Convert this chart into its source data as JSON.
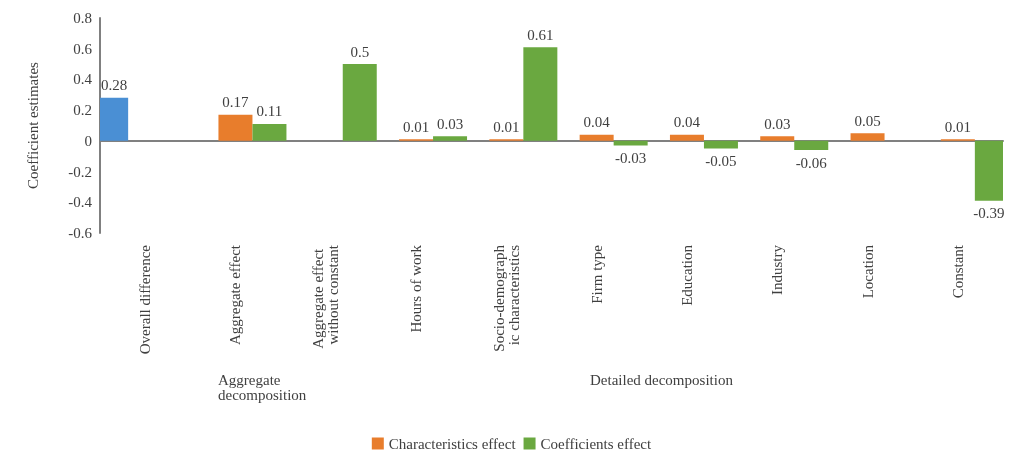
{
  "chart_data": {
    "type": "bar",
    "ylabel": "Coefficient estimates",
    "categories": [
      "Overall difference",
      "Aggregate effect",
      "Aggregate effect without constant",
      "Hours of work",
      "Socio-demographic characteristics",
      "Firm type",
      "Education",
      "Industry",
      "Location",
      "Constant"
    ],
    "series": [
      {
        "color": "#4a8fd4",
        "values": [
          0.28,
          null,
          null,
          null,
          null,
          null,
          null,
          null,
          null,
          null
        ]
      },
      {
        "name": "Characteristics effect",
        "color": "#e87d2c",
        "values": [
          null,
          0.17,
          null,
          0.01,
          0.01,
          0.04,
          0.04,
          0.03,
          0.05,
          0.01
        ]
      },
      {
        "name": "Coefficients effect",
        "color": "#6aa840",
        "values": [
          null,
          0.11,
          0.5,
          0.03,
          0.61,
          -0.03,
          -0.05,
          -0.06,
          null,
          -0.39
        ]
      }
    ],
    "data_labels": true,
    "ylim": [
      -0.6,
      0.8
    ],
    "yticks": [
      -0.6,
      -0.4,
      -0.2,
      0,
      0.2,
      0.4,
      0.6,
      0.8
    ],
    "legend": "bottom",
    "annotations": [
      "Aggregate decomposition",
      "Detailed decomposition"
    ]
  }
}
